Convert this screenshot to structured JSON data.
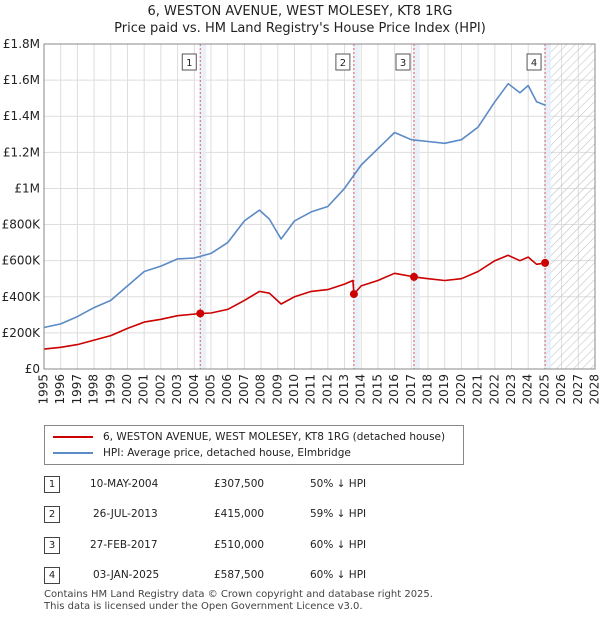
{
  "title_line1": "6, WESTON AVENUE, WEST MOLESEY, KT8 1RG",
  "title_line2": "Price paid vs. HM Land Registry's House Price Index (HPI)",
  "colors": {
    "price": "#cc0000",
    "hpi": "#5b8ac6",
    "grid": "#dddddd",
    "band": "#e6eef8",
    "marker_line": "#e06060"
  },
  "chart_data": {
    "type": "line",
    "title": "Price paid vs. HM Land Registry's House Price Index (HPI)",
    "xlim": [
      1995,
      2028
    ],
    "ylim": [
      0,
      1800000
    ],
    "y_ticks": [
      0,
      200000,
      400000,
      600000,
      800000,
      1000000,
      1200000,
      1400000,
      1600000,
      1800000
    ],
    "y_tick_labels": [
      "£0",
      "£200K",
      "£400K",
      "£600K",
      "£800K",
      "£1M",
      "£1.2M",
      "£1.4M",
      "£1.6M",
      "£1.8M"
    ],
    "x_ticks": [
      1995,
      1996,
      1997,
      1998,
      1999,
      2000,
      2001,
      2002,
      2003,
      2004,
      2005,
      2006,
      2007,
      2008,
      2009,
      2010,
      2011,
      2012,
      2013,
      2014,
      2015,
      2016,
      2017,
      2018,
      2019,
      2020,
      2021,
      2022,
      2023,
      2024,
      2025,
      2026,
      2027,
      2028
    ],
    "x_tick_labels": [
      "1995",
      "1996",
      "1997",
      "1998",
      "1999",
      "2000",
      "2001",
      "2002",
      "2003",
      "2004",
      "2005",
      "2006",
      "2007",
      "2008",
      "2009",
      "2010",
      "2011",
      "2012",
      "2013",
      "2014",
      "2015",
      "2016",
      "2017",
      "2018",
      "2019",
      "2020",
      "2021",
      "2022",
      "2023",
      "2024",
      "2025",
      "2026",
      "2027",
      "2028"
    ],
    "forecast_from": 2025.05,
    "series": [
      {
        "name": "6, WESTON AVENUE, WEST MOLESEY, KT8 1RG (detached house)",
        "color": "#cc0000",
        "x": [
          1995,
          1996,
          1997,
          1998,
          1999,
          2000,
          2001,
          2002,
          2003,
          2004.36,
          2005,
          2006,
          2007,
          2007.9,
          2008.5,
          2009.2,
          2010,
          2011,
          2012,
          2013,
          2013.5,
          2013.56,
          2014,
          2015,
          2016,
          2017.16,
          2018,
          2019,
          2020,
          2021,
          2022,
          2022.8,
          2023.5,
          2024,
          2024.5,
          2025.01
        ],
        "y": [
          110000,
          120000,
          135000,
          160000,
          185000,
          225000,
          260000,
          275000,
          295000,
          307500,
          310000,
          330000,
          380000,
          430000,
          420000,
          360000,
          400000,
          430000,
          440000,
          470000,
          490000,
          415000,
          460000,
          490000,
          530000,
          510000,
          500000,
          490000,
          500000,
          540000,
          600000,
          630000,
          600000,
          620000,
          580000,
          587500
        ]
      },
      {
        "name": "HPI: Average price, detached house, Elmbridge",
        "color": "#5b8ac6",
        "x": [
          1995,
          1996,
          1997,
          1998,
          1999,
          2000,
          2001,
          2002,
          2003,
          2004,
          2005,
          2006,
          2007,
          2007.9,
          2008.5,
          2009.2,
          2010,
          2011,
          2012,
          2013,
          2014,
          2015,
          2016,
          2016.5,
          2017,
          2018,
          2019,
          2020,
          2021,
          2022,
          2022.8,
          2023.5,
          2024,
          2024.5,
          2025.05
        ],
        "y": [
          230000,
          250000,
          290000,
          340000,
          380000,
          460000,
          540000,
          570000,
          610000,
          615000,
          640000,
          700000,
          820000,
          880000,
          830000,
          720000,
          820000,
          870000,
          900000,
          1000000,
          1130000,
          1220000,
          1310000,
          1290000,
          1270000,
          1260000,
          1250000,
          1270000,
          1340000,
          1480000,
          1580000,
          1530000,
          1570000,
          1480000,
          1460000
        ]
      }
    ],
    "sales": [
      {
        "label": "1",
        "year": 2004.36,
        "price": 307500
      },
      {
        "label": "2",
        "year": 2013.56,
        "price": 415000
      },
      {
        "label": "3",
        "year": 2017.16,
        "price": 510000
      },
      {
        "label": "4",
        "year": 2025.01,
        "price": 587500
      }
    ]
  },
  "legend": {
    "price_label": "6, WESTON AVENUE, WEST MOLESEY, KT8 1RG (detached house)",
    "hpi_label": "HPI: Average price, detached house, Elmbridge"
  },
  "transactions": [
    {
      "num": "1",
      "date": "10-MAY-2004",
      "price": "£307,500",
      "hpi": "50% ↓ HPI"
    },
    {
      "num": "2",
      "date": "26-JUL-2013",
      "price": "£415,000",
      "hpi": "59% ↓ HPI"
    },
    {
      "num": "3",
      "date": "27-FEB-2017",
      "price": "£510,000",
      "hpi": "60% ↓ HPI"
    },
    {
      "num": "4",
      "date": "03-JAN-2025",
      "price": "£587,500",
      "hpi": "60% ↓ HPI"
    }
  ],
  "footer": {
    "line1": "Contains HM Land Registry data © Crown copyright and database right 2025.",
    "line2": "This data is licensed under the Open Government Licence v3.0."
  }
}
